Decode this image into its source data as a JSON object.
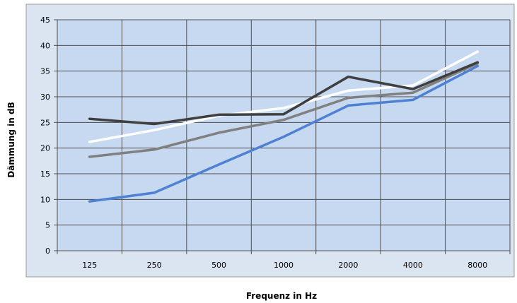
{
  "chart_data": {
    "type": "line",
    "title": "",
    "xlabel": "Frequenz in Hz",
    "ylabel": "Dämmung in dB",
    "categories": [
      "125",
      "250",
      "500",
      "1000",
      "2000",
      "4000",
      "8000"
    ],
    "ylim": [
      0,
      45
    ],
    "yticks": [
      0,
      5,
      10,
      15,
      20,
      25,
      30,
      35,
      40,
      45
    ],
    "grid": true,
    "legend": "none",
    "colors": {
      "plot_background": "#c6d9f1",
      "outer_background": "#dbe5f1",
      "gridline": "#4d4d4d"
    },
    "series": [
      {
        "color": "#ffffff",
        "values": [
          21.2,
          23.5,
          26.3,
          27.8,
          31.2,
          32.2,
          38.8
        ]
      },
      {
        "color": "#808080",
        "values": [
          18.3,
          19.7,
          23.0,
          25.5,
          29.8,
          30.8,
          36.5
        ]
      },
      {
        "color": "#4f81d3",
        "values": [
          9.6,
          11.3,
          16.8,
          22.2,
          28.3,
          29.4,
          36.0
        ]
      },
      {
        "color": "#3f3f3f",
        "values": [
          25.7,
          24.7,
          26.5,
          26.6,
          33.9,
          31.5,
          36.7
        ]
      }
    ]
  }
}
